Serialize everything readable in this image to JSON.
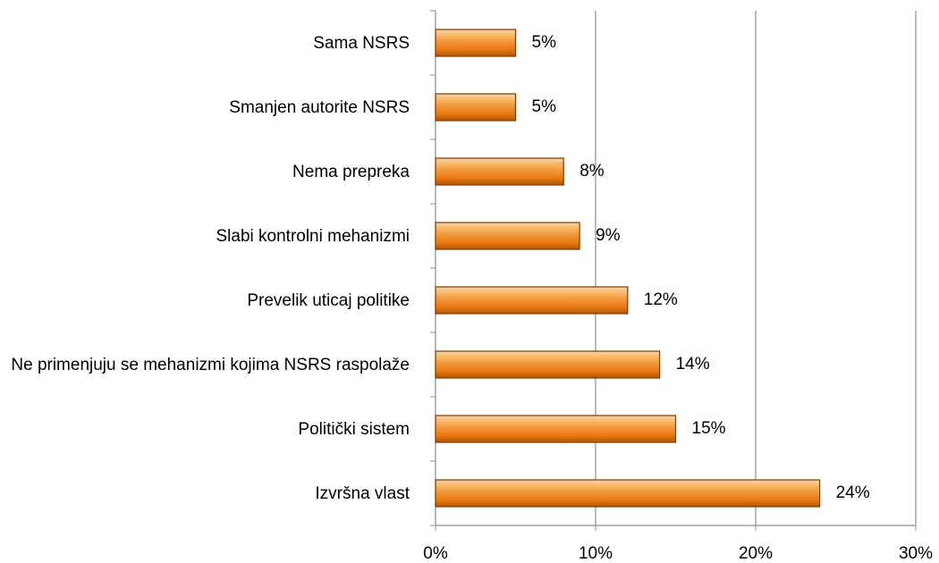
{
  "chart_data": {
    "type": "bar",
    "orientation": "horizontal",
    "categories": [
      "Sama NSRS",
      "Smanjen autorite NSRS",
      "Nema prepreka",
      "Slabi kontrolni mehanizmi",
      "Prevelik uticaj politike",
      "Ne primenjuju se mehanizmi kojima NSRS raspolaže",
      "Politički sistem",
      "Izvršna vlast"
    ],
    "values": [
      5,
      5,
      8,
      9,
      12,
      14,
      15,
      24
    ],
    "value_labels": [
      "5%",
      "5%",
      "8%",
      "9%",
      "12%",
      "14%",
      "15%",
      "24%"
    ],
    "color": "#f08a1c",
    "xlim": [
      0,
      30
    ],
    "xticks": [
      {
        "value": 0,
        "label": "0%"
      },
      {
        "value": 10,
        "label": "10%"
      },
      {
        "value": 20,
        "label": "20%"
      },
      {
        "value": 30,
        "label": "30%"
      }
    ],
    "grid": true
  }
}
